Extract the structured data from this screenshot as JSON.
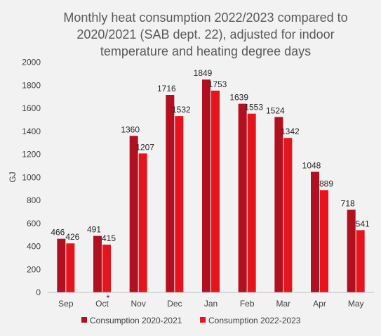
{
  "chart_data": {
    "type": "bar",
    "title_lines": [
      "Monthly heat consumption 2022/2023 compared to",
      "2020/2021 (SAB dept. 22), adjusted for indoor",
      "temperature and heating degree days"
    ],
    "ylabel": "GJ",
    "ylim": [
      0,
      2000
    ],
    "yticks": [
      "0",
      "200",
      "400",
      "600",
      "800",
      "1000",
      "1200",
      "1400",
      "1600",
      "1800",
      "2000"
    ],
    "categories": [
      "Sep",
      "Oct",
      "Nov",
      "Dec",
      "Jan",
      "Feb",
      "Mar",
      "Apr",
      "May"
    ],
    "series": [
      {
        "name": "Consumption 2020-2021",
        "color": "#b01020",
        "values": [
          466,
          491,
          1360,
          1716,
          1849,
          1639,
          1524,
          1048,
          718
        ]
      },
      {
        "name": "Consumption 2022-2023",
        "color": "#e6141c",
        "values": [
          426,
          415,
          1207,
          1532,
          1753,
          1553,
          1342,
          889,
          541
        ]
      }
    ],
    "annotation": {
      "category": "Oct",
      "text": "*"
    },
    "legend_position": "bottom"
  }
}
